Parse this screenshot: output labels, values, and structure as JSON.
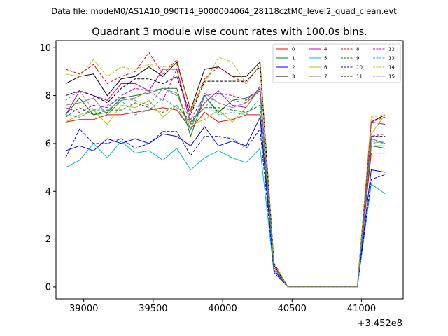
{
  "header": {
    "data_file": "Data file: modeM0/AS1A10_090T14_9000004064_28118cztM0_level2_quad_clean.evt"
  },
  "chart_data": {
    "type": "line",
    "title": "Quadrant 3 module wise count rates with 100.0s bins.",
    "xlabel": "",
    "ylabel": "",
    "x_offset_label": "+3.452e8",
    "xlim": [
      38800,
      41300
    ],
    "ylim": [
      -0.5,
      10.3
    ],
    "grid": false,
    "legend_position": "top-right",
    "x_ticks": [
      39000,
      39500,
      40000,
      40500,
      41000
    ],
    "y_ticks": [
      0,
      2,
      4,
      6,
      8,
      10
    ],
    "x": [
      38870,
      38970,
      39070,
      39170,
      39270,
      39370,
      39470,
      39570,
      39670,
      39770,
      39870,
      39970,
      40070,
      40170,
      40270,
      40370,
      40470,
      40570,
      40670,
      40770,
      40870,
      40970,
      41070,
      41170
    ],
    "series": [
      {
        "name": "0",
        "color": "#ff0000",
        "dash": "solid",
        "values": [
          6.9,
          7.0,
          7.0,
          7.2,
          7.2,
          7.3,
          7.4,
          7.5,
          7.4,
          6.6,
          7.3,
          6.9,
          7.0,
          7.2,
          7.2,
          0.9,
          0,
          0,
          0,
          0,
          0,
          0,
          5.6,
          5.6
        ]
      },
      {
        "name": "1",
        "color": "#008000",
        "dash": "solid",
        "values": [
          7.2,
          7.9,
          7.2,
          7.3,
          7.9,
          8.0,
          8.1,
          8.3,
          8.3,
          6.3,
          8.0,
          7.3,
          7.8,
          7.9,
          8.2,
          0.8,
          0,
          0,
          0,
          0,
          0,
          0,
          5.9,
          5.8
        ]
      },
      {
        "name": "2",
        "color": "#0000ff",
        "dash": "solid",
        "values": [
          5.7,
          5.9,
          5.7,
          6.2,
          6.0,
          6.2,
          6.0,
          6.4,
          6.3,
          5.9,
          6.7,
          5.9,
          6.1,
          5.9,
          7.1,
          0.7,
          0,
          0,
          0,
          0,
          0,
          0,
          4.9,
          4.8
        ]
      },
      {
        "name": "3",
        "color": "#000000",
        "dash": "solid",
        "values": [
          8.5,
          8.8,
          8.9,
          8.0,
          8.7,
          8.8,
          9.2,
          8.8,
          9.4,
          7.4,
          9.1,
          9.2,
          8.8,
          8.8,
          9.4,
          1.0,
          0,
          0,
          0,
          0,
          0,
          0,
          6.9,
          7.2
        ]
      },
      {
        "name": "4",
        "color": "#bf00bf",
        "dash": "solid",
        "values": [
          7.2,
          8.2,
          8.0,
          7.8,
          8.5,
          8.5,
          8.2,
          9.1,
          9.1,
          6.8,
          7.7,
          8.2,
          7.6,
          7.5,
          8.4,
          0.8,
          0,
          0,
          0,
          0,
          0,
          0,
          6.9,
          6.8
        ]
      },
      {
        "name": "5",
        "color": "#00bfbf",
        "dash": "solid",
        "values": [
          5.0,
          5.3,
          6.0,
          5.4,
          6.1,
          5.6,
          5.7,
          5.3,
          5.8,
          4.9,
          5.4,
          5.7,
          5.4,
          5.2,
          5.8,
          0.6,
          0,
          0,
          0,
          0,
          0,
          0,
          4.3,
          3.9
        ]
      },
      {
        "name": "6",
        "color": "#bfbf00",
        "dash": "solid",
        "values": [
          6.9,
          7.2,
          7.4,
          6.8,
          7.6,
          7.5,
          7.8,
          7.1,
          7.6,
          6.8,
          7.0,
          7.4,
          6.9,
          7.5,
          8.3,
          0.8,
          0,
          0,
          0,
          0,
          0,
          0,
          6.4,
          7.2
        ]
      },
      {
        "name": "7",
        "color": "#808080",
        "dash": "solid",
        "values": [
          7.6,
          7.7,
          7.9,
          7.2,
          7.8,
          7.9,
          8.2,
          8.3,
          8.1,
          6.6,
          8.1,
          7.7,
          7.5,
          7.7,
          8.2,
          0.8,
          0,
          0,
          0,
          0,
          0,
          0,
          6.2,
          6.0
        ]
      },
      {
        "name": "8",
        "color": "#ff0000",
        "dash": "dashed",
        "values": [
          9.1,
          8.9,
          9.3,
          8.5,
          8.8,
          9.0,
          9.8,
          8.9,
          9.5,
          7.3,
          8.7,
          9.2,
          8.8,
          8.5,
          9.3,
          1.0,
          0,
          0,
          0,
          0,
          0,
          0,
          6.9,
          7.1
        ]
      },
      {
        "name": "9",
        "color": "#008000",
        "dash": "dashed",
        "values": [
          7.1,
          7.5,
          7.2,
          7.4,
          7.4,
          7.7,
          7.5,
          7.3,
          7.6,
          6.9,
          7.5,
          7.5,
          7.4,
          7.3,
          7.6,
          0.8,
          0,
          0,
          0,
          0,
          0,
          0,
          5.9,
          5.9
        ]
      },
      {
        "name": "10",
        "color": "#0000ff",
        "dash": "dashed",
        "values": [
          5.4,
          6.6,
          6.0,
          6.0,
          6.2,
          5.8,
          6.0,
          6.5,
          6.5,
          5.5,
          6.3,
          6.3,
          6.2,
          5.8,
          6.6,
          0.6,
          0,
          0,
          0,
          0,
          0,
          0,
          4.5,
          4.7
        ]
      },
      {
        "name": "11",
        "color": "#000000",
        "dash": "dashed",
        "values": [
          8.0,
          8.2,
          8.0,
          7.7,
          8.3,
          8.7,
          8.7,
          8.5,
          8.8,
          7.2,
          8.6,
          8.6,
          8.6,
          8.6,
          9.2,
          0.9,
          0,
          0,
          0,
          0,
          0,
          0,
          6.3,
          6.3
        ]
      },
      {
        "name": "12",
        "color": "#bf00bf",
        "dash": "dashed",
        "values": [
          7.5,
          7.3,
          7.6,
          7.5,
          8.0,
          8.3,
          8.2,
          7.8,
          9.1,
          7.0,
          8.0,
          8.1,
          8.0,
          7.8,
          8.3,
          0.8,
          0,
          0,
          0,
          0,
          0,
          0,
          6.3,
          6.4
        ]
      },
      {
        "name": "13",
        "color": "#00bfbf",
        "dash": "dashed",
        "values": [
          7.2,
          7.1,
          7.4,
          7.4,
          7.8,
          7.2,
          7.4,
          7.9,
          7.5,
          6.6,
          8.0,
          7.2,
          7.3,
          7.2,
          7.9,
          0.8,
          0,
          0,
          0,
          0,
          0,
          0,
          6.1,
          6.0
        ]
      },
      {
        "name": "14",
        "color": "#bfbf00",
        "dash": "dashed",
        "values": [
          8.9,
          8.8,
          9.5,
          8.8,
          9.2,
          9.1,
          9.3,
          9.2,
          9.3,
          7.4,
          8.5,
          9.6,
          9.4,
          8.5,
          9.3,
          1.0,
          0,
          0,
          0,
          0,
          0,
          0,
          7.1,
          7.2
        ]
      },
      {
        "name": "15",
        "color": "#808080",
        "dash": "dashed",
        "values": [
          7.8,
          8.2,
          7.4,
          7.6,
          7.9,
          7.8,
          7.6,
          8.3,
          8.0,
          7.0,
          7.5,
          8.1,
          7.8,
          7.7,
          8.3,
          0.8,
          0,
          0,
          0,
          0,
          0,
          0,
          6.0,
          6.1
        ]
      }
    ]
  }
}
